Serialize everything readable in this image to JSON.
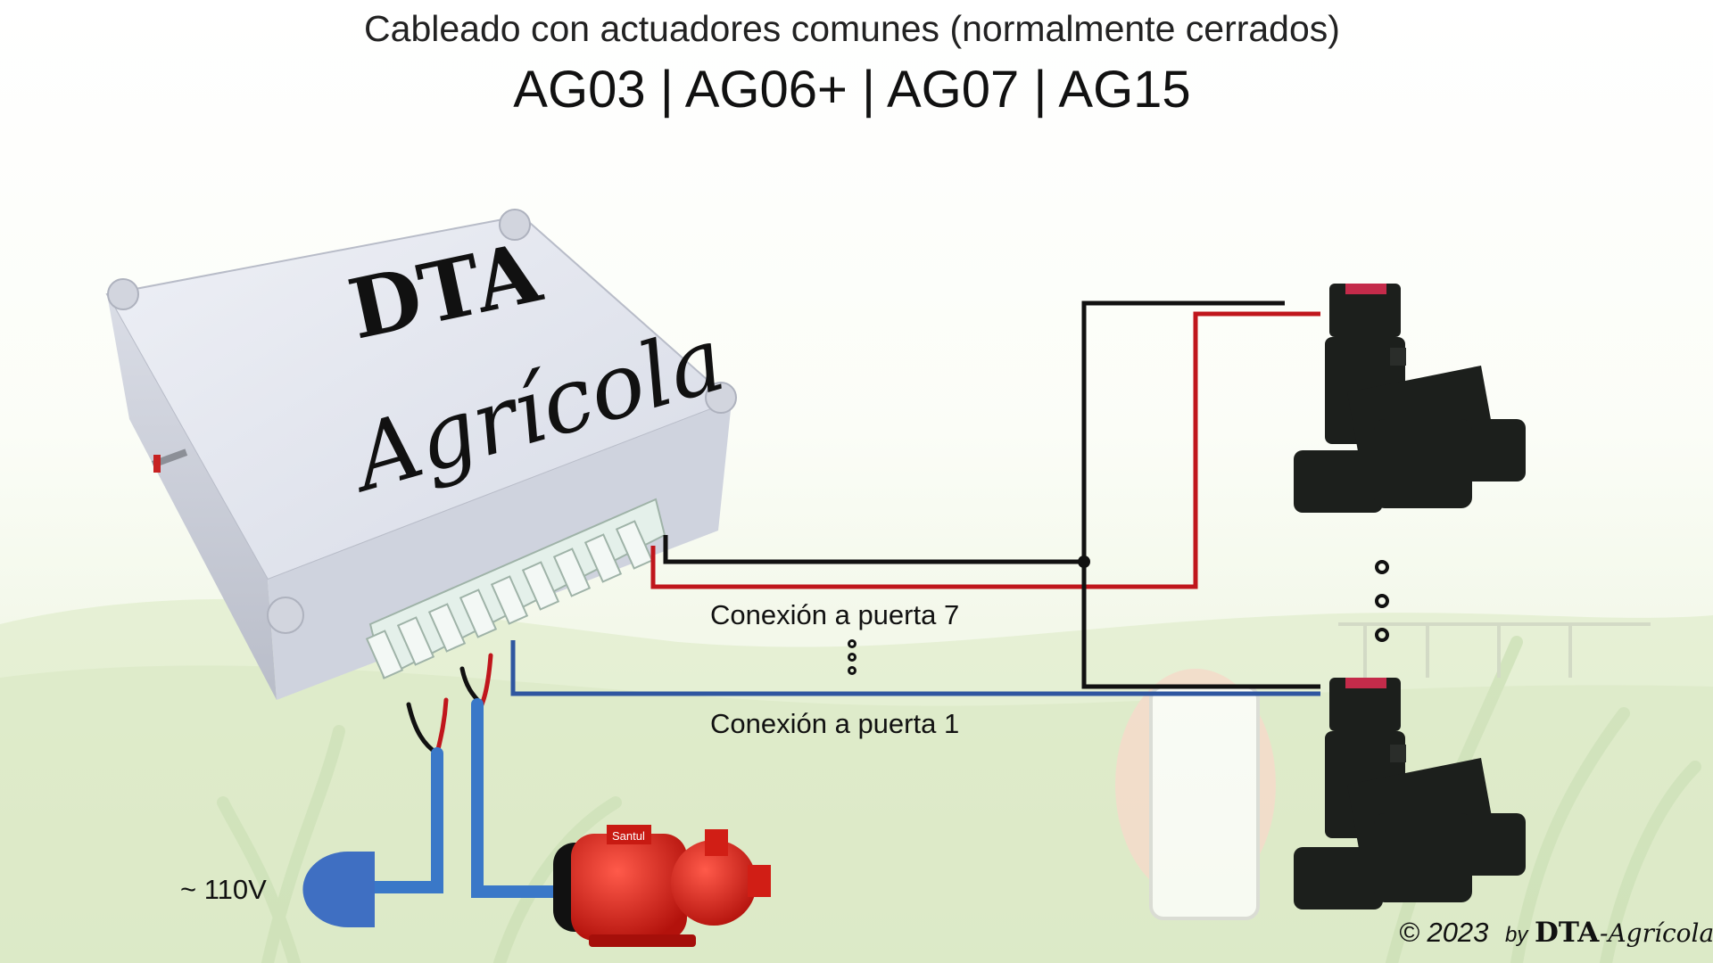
{
  "header": {
    "subtitle": "Cableado con actuadores comunes (normalmente cerrados)",
    "title": "AG03 | AG06+ | AG07 | AG15"
  },
  "controller": {
    "logo_top": "DTA",
    "logo_bottom": "Agrícola"
  },
  "labels": {
    "door7": "Conexión a puerta 7",
    "door1": "Conexión a puerta 1",
    "voltage": "~ 110V",
    "pump_brand": "Santul"
  },
  "footer": {
    "copyright_prefix": "© 2023",
    "by": "by",
    "brand_dta": "DTA",
    "brand_rest": "-Agrícola"
  },
  "colors": {
    "wire_black": "#111111",
    "wire_red": "#c0161c",
    "wire_blue": "#2f56a0",
    "mains_blue": "#3a78c8",
    "plug_blue": "#3f6fc2",
    "pump_red": "#e0241b",
    "valve_body": "#1c1f1c"
  },
  "icons": [
    "controller-box-icon",
    "plug-icon",
    "pump-icon",
    "solenoid-valve-icon",
    "ellipsis-dots-icon"
  ]
}
